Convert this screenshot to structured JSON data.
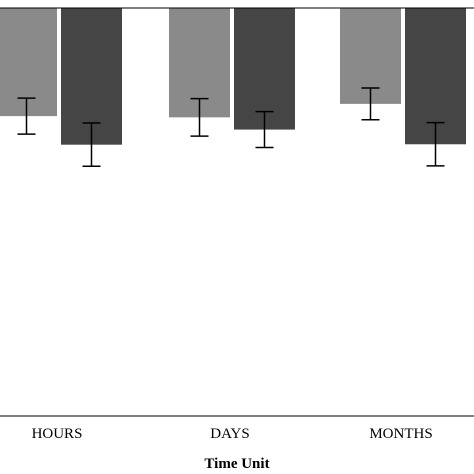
{
  "chart_data": {
    "type": "bar",
    "title": "",
    "xlabel": "Time Unit",
    "ylabel": "",
    "categories": [
      "HOURS",
      "DAYS",
      "MONTHS"
    ],
    "ylim": [
      0,
      100
    ],
    "grid": false,
    "legend": "none",
    "series": [
      {
        "color": "#8a8a8a",
        "values": [
          73.5,
          73.2,
          76.5
        ],
        "error": [
          4.4,
          4.6,
          3.9
        ]
      },
      {
        "color": "#454545",
        "values": [
          66.5,
          70.2,
          66.6
        ],
        "error": [
          5.3,
          4.4,
          5.3
        ]
      }
    ]
  }
}
